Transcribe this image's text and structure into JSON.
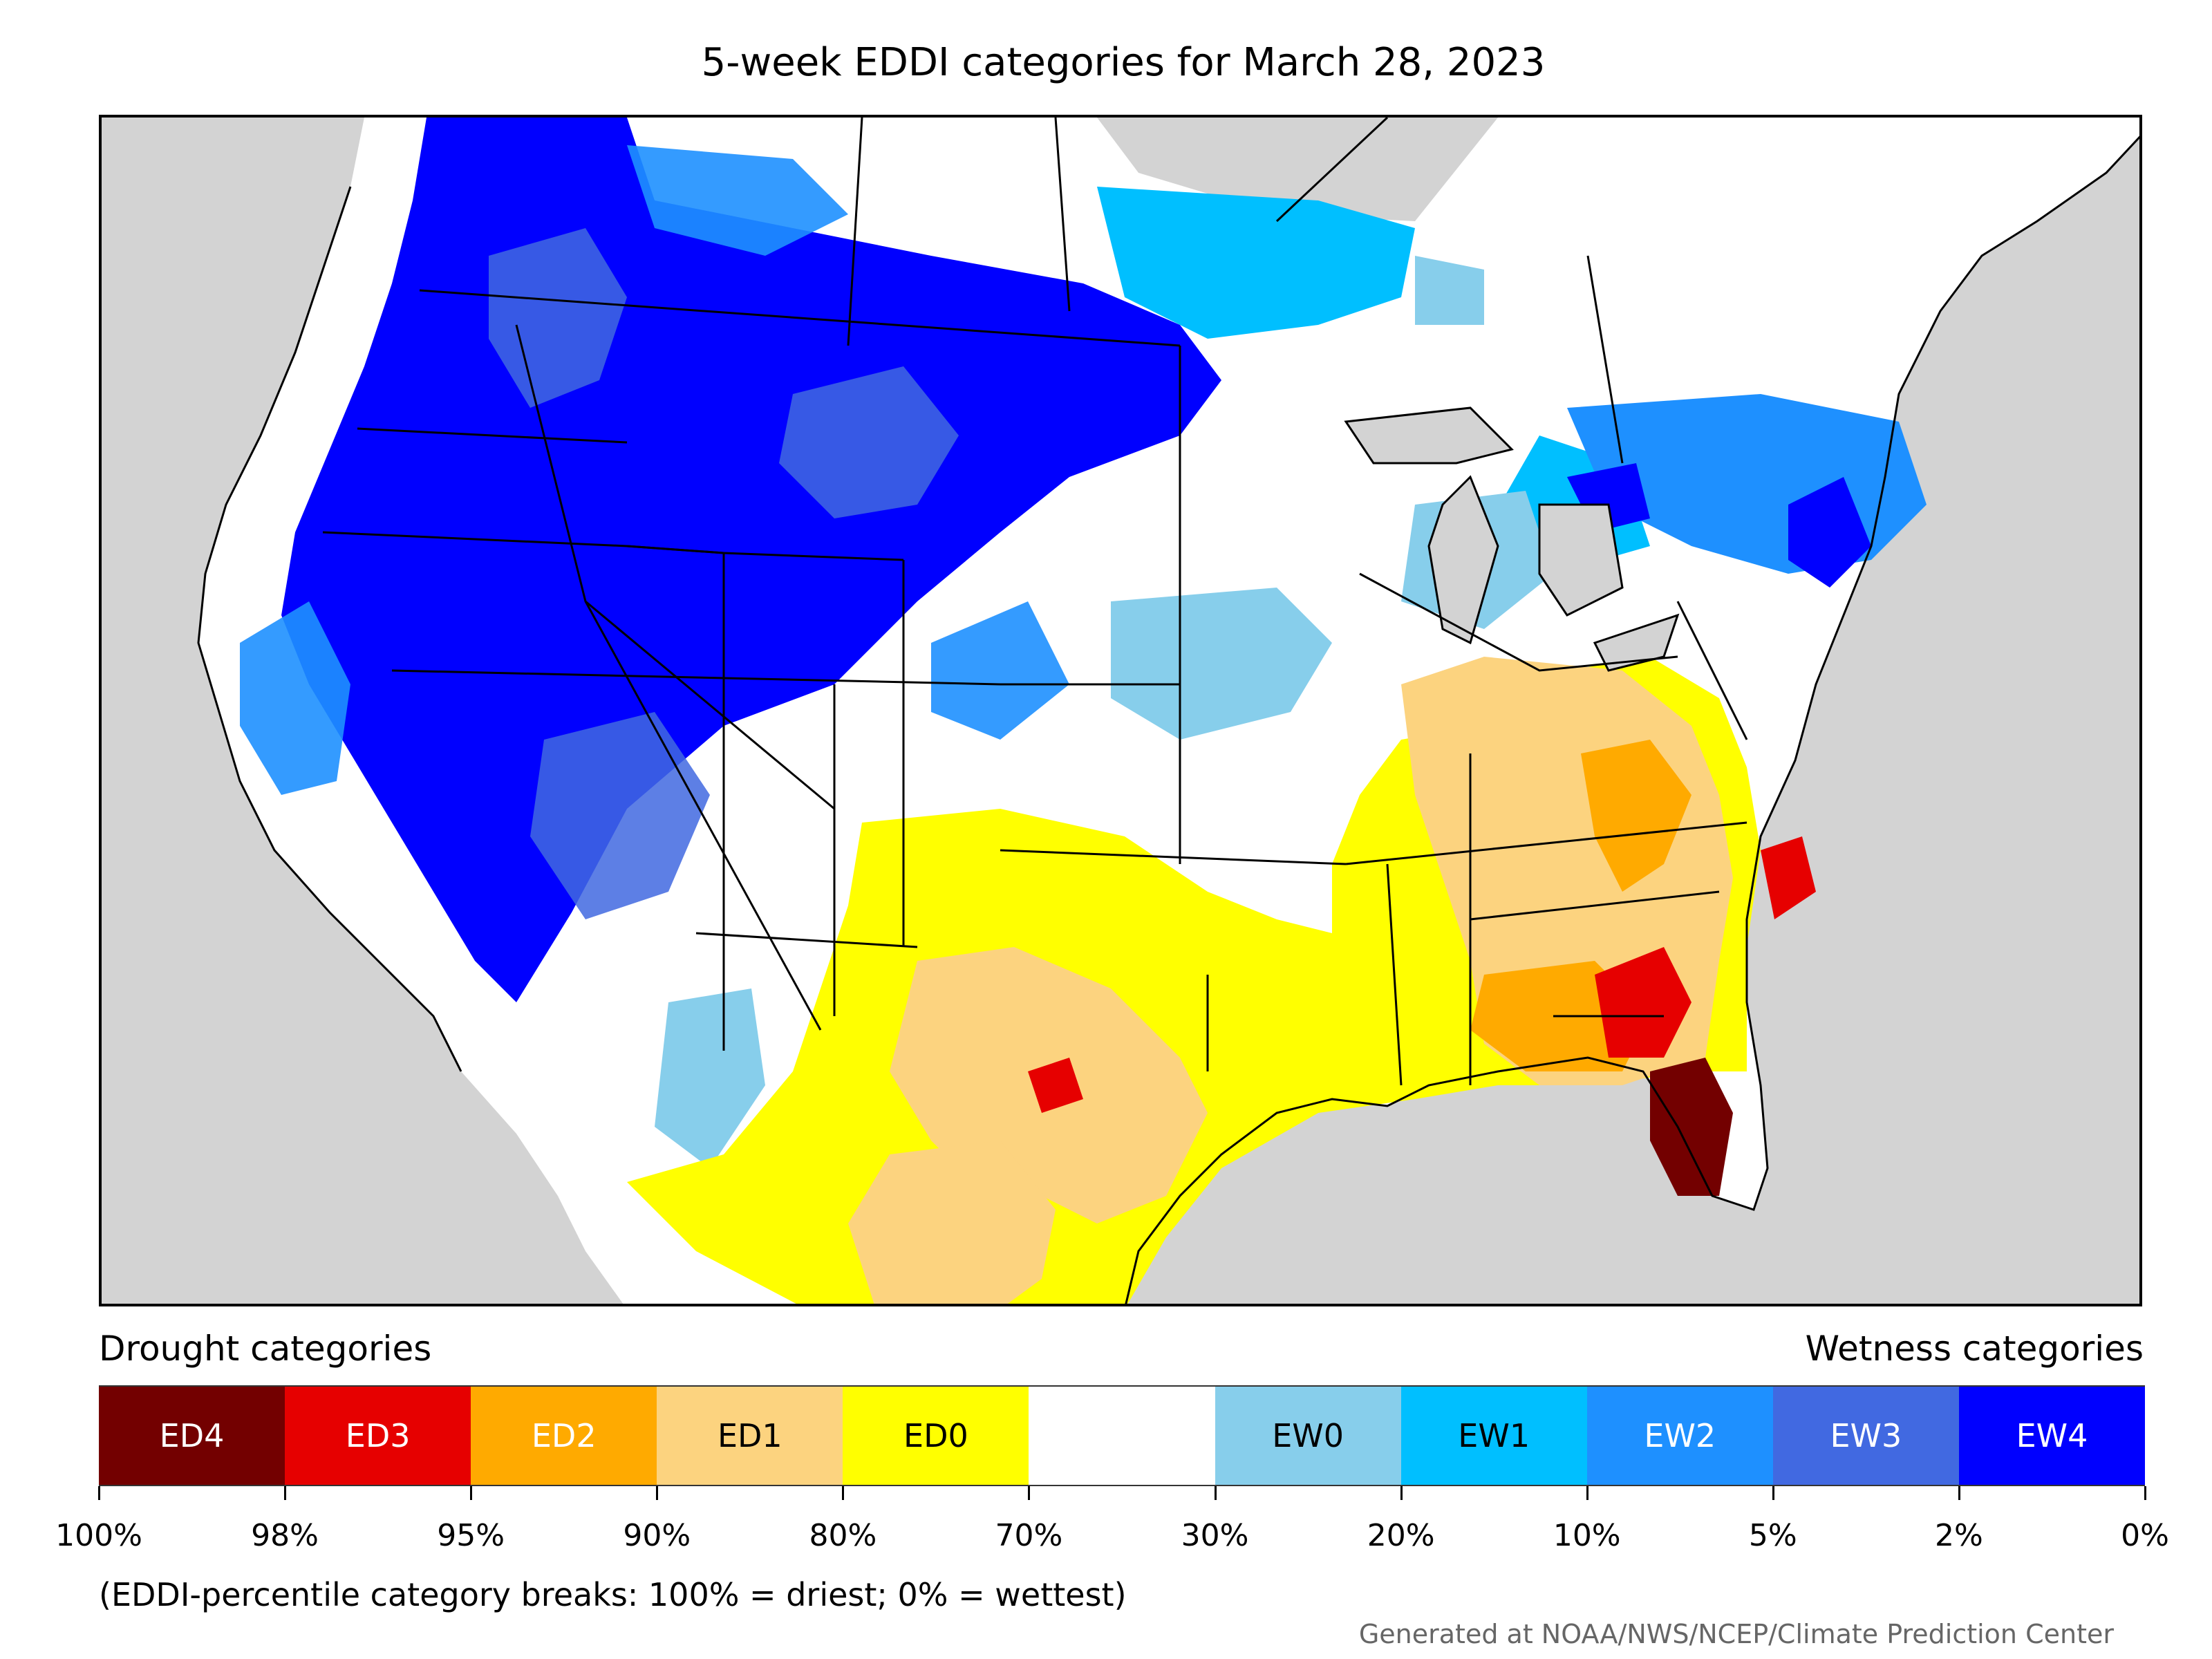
{
  "title": "5-week EDDI categories for March 28, 2023",
  "legend": {
    "drought_heading": "Drought categories",
    "wetness_heading": "Wetness categories",
    "categories": [
      {
        "label": "ED4",
        "color": "#730000",
        "text_color": "#ffffff"
      },
      {
        "label": "ED3",
        "color": "#e60000",
        "text_color": "#ffffff"
      },
      {
        "label": "ED2",
        "color": "#ffaa00",
        "text_color": "#ffffff"
      },
      {
        "label": "ED1",
        "color": "#fcd37f",
        "text_color": "#000000"
      },
      {
        "label": "ED0",
        "color": "#ffff00",
        "text_color": "#000000"
      },
      {
        "label": "",
        "color": "#ffffff",
        "text_color": "#000000"
      },
      {
        "label": "EW0",
        "color": "#87ceeb",
        "text_color": "#000000"
      },
      {
        "label": "EW1",
        "color": "#00bfff",
        "text_color": "#000000"
      },
      {
        "label": "EW2",
        "color": "#1e90ff",
        "text_color": "#ffffff"
      },
      {
        "label": "EW3",
        "color": "#4169e1",
        "text_color": "#ffffff"
      },
      {
        "label": "EW4",
        "color": "#0000ff",
        "text_color": "#ffffff"
      }
    ],
    "ticks": [
      "100%",
      "98%",
      "95%",
      "90%",
      "80%",
      "70%",
      "30%",
      "20%",
      "10%",
      "5%",
      "2%",
      "0%"
    ]
  },
  "note": "(EDDI-percentile category breaks: 100% = driest; 0% = wettest)",
  "credit": "Generated at NOAA/NWS/NCEP/Climate Prediction Center",
  "map": {
    "background_color": "#d3d3d3",
    "land_color": "#ffffff",
    "line_color": "#000000"
  }
}
